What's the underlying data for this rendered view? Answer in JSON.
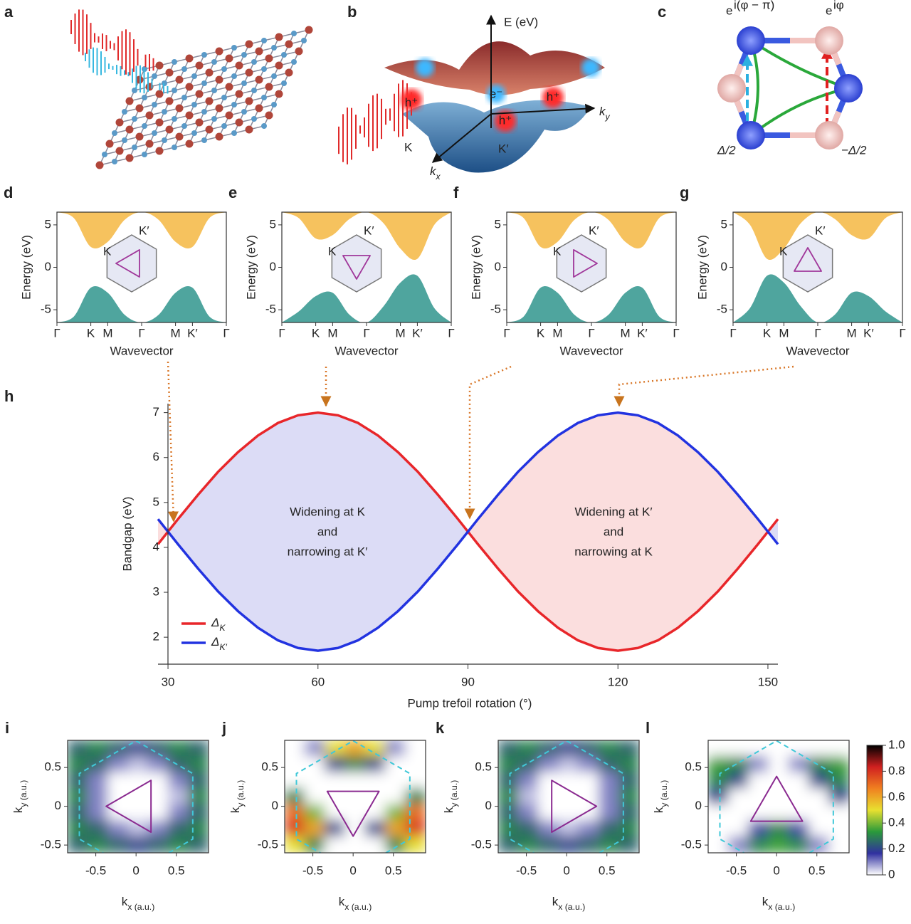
{
  "figure": {
    "a": {
      "panel_label": "a"
    },
    "b": {
      "panel_label": "b",
      "energy_axis": "E (eV)",
      "ky_axis": "ky",
      "kx_axis": "kx",
      "electron": "e⁻",
      "holes": [
        "h⁺",
        "h⁺",
        "h⁺"
      ],
      "valley_k": "K",
      "valley_k_prime": "K′"
    },
    "c": {
      "panel_label": "c",
      "phase_blue": {
        "base": "e",
        "exponent": "i(φ − π)"
      },
      "phase_red": {
        "base": "e",
        "exponent": "iφ"
      },
      "onsite_blue": "Δ/2",
      "onsite_red": "−Δ/2"
    }
  },
  "chart_data": [
    {
      "type": "band",
      "panel_label": "d",
      "x": [
        0,
        0.1,
        0.2,
        0.3,
        0.4,
        0.5,
        0.6,
        0.7,
        0.8,
        0.9,
        1
      ],
      "xlim": [
        0,
        1
      ],
      "xticks": [
        {
          "value": 0,
          "label": "Γ"
        },
        {
          "value": 0.2,
          "label": "K"
        },
        {
          "value": 0.3,
          "label": "M"
        },
        {
          "value": 0.5,
          "label": "Γ"
        },
        {
          "value": 0.7,
          "label": "M"
        },
        {
          "value": 0.8,
          "label": "K′"
        },
        {
          "value": 1,
          "label": "Γ"
        }
      ],
      "ylim": [
        -6.5,
        6.5
      ],
      "yticks": [
        -5,
        0,
        5
      ],
      "xlabel": "Wavevector",
      "ylabel": "Energy (eV)",
      "inset_labels": [
        "K",
        "K′"
      ],
      "series": [
        {
          "color": "#f6c25e",
          "fill": "top",
          "values": [
            6.5,
            5.8,
            2.4,
            3.0,
            5.6,
            6.5,
            5.6,
            3.0,
            2.4,
            5.8,
            6.5
          ]
        },
        {
          "color": "#4fa59e",
          "fill": "bottom",
          "values": [
            -6.5,
            -5.8,
            -2.4,
            -3.0,
            -5.6,
            -6.5,
            -5.6,
            -3.0,
            -2.4,
            -5.8,
            -6.5
          ]
        }
      ]
    },
    {
      "type": "band",
      "panel_label": "e",
      "x": [
        0,
        0.1,
        0.2,
        0.3,
        0.4,
        0.5,
        0.6,
        0.7,
        0.8,
        0.9,
        1
      ],
      "xlim": [
        0,
        1
      ],
      "xticks": [
        {
          "value": 0,
          "label": "Γ"
        },
        {
          "value": 0.2,
          "label": "K"
        },
        {
          "value": 0.3,
          "label": "M"
        },
        {
          "value": 0.5,
          "label": "Γ"
        },
        {
          "value": 0.7,
          "label": "M"
        },
        {
          "value": 0.8,
          "label": "K′"
        },
        {
          "value": 1,
          "label": "Γ"
        }
      ],
      "ylim": [
        -6.5,
        6.5
      ],
      "yticks": [
        -5,
        0,
        5
      ],
      "xlabel": "Wavevector",
      "ylabel": "Energy (eV)",
      "inset_labels": [
        "K",
        "K′"
      ],
      "series": [
        {
          "color": "#f6c25e",
          "fill": "top",
          "values": [
            6.5,
            5.8,
            3.4,
            3.8,
            5.7,
            6.5,
            5.2,
            2.2,
            1.0,
            5.0,
            6.5
          ]
        },
        {
          "color": "#4fa59e",
          "fill": "bottom",
          "values": [
            -6.5,
            -5.2,
            -3.4,
            -3.0,
            -5.6,
            -6.5,
            -4.6,
            -1.8,
            -1.0,
            -4.8,
            -6.5
          ]
        }
      ]
    },
    {
      "type": "band",
      "panel_label": "f",
      "x": [
        0,
        0.1,
        0.2,
        0.3,
        0.4,
        0.5,
        0.6,
        0.7,
        0.8,
        0.9,
        1
      ],
      "xlim": [
        0,
        1
      ],
      "xticks": [
        {
          "value": 0,
          "label": "Γ"
        },
        {
          "value": 0.2,
          "label": "K"
        },
        {
          "value": 0.3,
          "label": "M"
        },
        {
          "value": 0.5,
          "label": "Γ"
        },
        {
          "value": 0.7,
          "label": "M"
        },
        {
          "value": 0.8,
          "label": "K′"
        },
        {
          "value": 1,
          "label": "Γ"
        }
      ],
      "ylim": [
        -6.5,
        6.5
      ],
      "yticks": [
        -5,
        0,
        5
      ],
      "xlabel": "Wavevector",
      "ylabel": "Energy (eV)",
      "inset_labels": [
        "K",
        "K′"
      ],
      "series": [
        {
          "color": "#f6c25e",
          "fill": "top",
          "values": [
            6.5,
            5.8,
            2.4,
            3.0,
            5.6,
            6.5,
            5.6,
            3.0,
            2.4,
            5.8,
            6.5
          ]
        },
        {
          "color": "#4fa59e",
          "fill": "bottom",
          "values": [
            -6.5,
            -5.8,
            -2.4,
            -3.0,
            -5.6,
            -6.5,
            -5.6,
            -3.0,
            -2.4,
            -5.8,
            -6.5
          ]
        }
      ]
    },
    {
      "type": "band",
      "panel_label": "g",
      "x": [
        0,
        0.1,
        0.2,
        0.3,
        0.4,
        0.5,
        0.6,
        0.7,
        0.8,
        0.9,
        1
      ],
      "xlim": [
        0,
        1
      ],
      "xticks": [
        {
          "value": 0,
          "label": "Γ"
        },
        {
          "value": 0.2,
          "label": "K"
        },
        {
          "value": 0.3,
          "label": "M"
        },
        {
          "value": 0.5,
          "label": "Γ"
        },
        {
          "value": 0.7,
          "label": "M"
        },
        {
          "value": 0.8,
          "label": "K′"
        },
        {
          "value": 1,
          "label": "Γ"
        }
      ],
      "ylim": [
        -6.5,
        6.5
      ],
      "yticks": [
        -5,
        0,
        5
      ],
      "xlabel": "Wavevector",
      "ylabel": "Energy (eV)",
      "inset_labels": [
        "K",
        "K′"
      ],
      "series": [
        {
          "color": "#f6c25e",
          "fill": "top",
          "values": [
            6.5,
            5.0,
            1.0,
            2.2,
            5.2,
            6.5,
            5.7,
            3.8,
            3.4,
            5.8,
            6.5
          ]
        },
        {
          "color": "#4fa59e",
          "fill": "bottom",
          "values": [
            -6.5,
            -4.8,
            -1.0,
            -1.8,
            -4.6,
            -6.5,
            -5.6,
            -3.0,
            -3.4,
            -5.2,
            -6.5
          ]
        }
      ]
    },
    {
      "type": "line",
      "panel_label": "h",
      "x": [
        28,
        32,
        36,
        40,
        44,
        48,
        52,
        56,
        60,
        64,
        68,
        72,
        76,
        80,
        84,
        88,
        92,
        96,
        100,
        104,
        108,
        112,
        116,
        120,
        124,
        128,
        132,
        136,
        140,
        144,
        148,
        152
      ],
      "xlim": [
        28,
        152
      ],
      "xticks": [
        30,
        60,
        90,
        120,
        150
      ],
      "ylim": [
        1.4,
        7.2
      ],
      "yticks": [
        2,
        3,
        4,
        5,
        6,
        7
      ],
      "xlabel": "Pump trefoil rotation (°)",
      "ylabel": "Bandgap (eV)",
      "legend": "lower left",
      "series": [
        {
          "name": "ΔK",
          "color": "#e8262a",
          "values": [
            4.07,
            4.63,
            5.17,
            5.68,
            6.12,
            6.49,
            6.77,
            6.94,
            7.0,
            6.94,
            6.77,
            6.49,
            6.12,
            5.68,
            5.17,
            4.63,
            4.07,
            3.53,
            3.02,
            2.58,
            2.21,
            1.93,
            1.76,
            1.7,
            1.76,
            1.93,
            2.21,
            2.58,
            3.02,
            3.53,
            4.07,
            4.63
          ]
        },
        {
          "name": "ΔK′",
          "color": "#2233e0",
          "values": [
            4.63,
            4.07,
            3.53,
            3.02,
            2.58,
            2.21,
            1.93,
            1.76,
            1.7,
            1.76,
            1.93,
            2.21,
            2.58,
            3.02,
            3.53,
            4.07,
            4.63,
            5.17,
            5.68,
            6.12,
            6.49,
            6.77,
            6.94,
            7.0,
            6.94,
            6.77,
            6.49,
            6.12,
            5.68,
            5.17,
            4.63,
            4.07
          ]
        }
      ],
      "fill_colors": [
        "#dcdcf6",
        "#fbdede"
      ],
      "annotations": [
        [
          "Widening at K",
          "and",
          "narrowing at K′"
        ],
        [
          "Widening at K′",
          "and",
          "narrowing at K"
        ]
      ]
    },
    {
      "type": "heatmap",
      "panel_label": "i",
      "xlim": [
        -0.85,
        0.9
      ],
      "ylim": [
        -0.6,
        0.85
      ],
      "xticks": [
        -0.5,
        0,
        0.5
      ],
      "yticks": [
        -0.5,
        0,
        0.5
      ],
      "xlabel": "kx (a.u.)",
      "ylabel": "ky (a.u.)",
      "z": [
        [
          0.25,
          0.3,
          0.25,
          0.2,
          0.25,
          0.3,
          0.25
        ],
        [
          0.3,
          0.25,
          0.1,
          0.05,
          0.1,
          0.25,
          0.3
        ],
        [
          0.25,
          0.1,
          0,
          0,
          0,
          0.1,
          0.25
        ],
        [
          0.3,
          0.1,
          0,
          0,
          0,
          0.05,
          0.3
        ],
        [
          0.25,
          0.1,
          0,
          0,
          0,
          0.1,
          0.25
        ],
        [
          0.3,
          0.25,
          0.1,
          0.05,
          0.1,
          0.25,
          0.3
        ],
        [
          0.25,
          0.3,
          0.25,
          0.2,
          0.25,
          0.3,
          0.25
        ]
      ]
    },
    {
      "type": "heatmap",
      "panel_label": "j",
      "xlim": [
        -0.85,
        0.9
      ],
      "ylim": [
        -0.6,
        0.85
      ],
      "xticks": [
        -0.5,
        0,
        0.5
      ],
      "yticks": [
        -0.5,
        0,
        0.5
      ],
      "xlabel": "kx (a.u.)",
      "ylabel": "ky (a.u.)",
      "z": [
        [
          0,
          0.1,
          0.5,
          0.6,
          0.5,
          0.1,
          0
        ],
        [
          0,
          0,
          0.2,
          0.3,
          0.2,
          0,
          0
        ],
        [
          0,
          0,
          0,
          0,
          0,
          0,
          0
        ],
        [
          0.3,
          0,
          0,
          0,
          0,
          0,
          0.3
        ],
        [
          0.7,
          0.4,
          0,
          0,
          0,
          0.4,
          0.7
        ],
        [
          0.8,
          0.6,
          0.2,
          0,
          0.2,
          0.6,
          0.8
        ],
        [
          0.5,
          0.3,
          0,
          0,
          0,
          0.3,
          0.5
        ]
      ]
    },
    {
      "type": "heatmap",
      "panel_label": "k",
      "xlim": [
        -0.85,
        0.9
      ],
      "ylim": [
        -0.6,
        0.85
      ],
      "xticks": [
        -0.5,
        0,
        0.5
      ],
      "yticks": [
        -0.5,
        0,
        0.5
      ],
      "xlabel": "kx (a.u.)",
      "ylabel": "ky (a.u.)",
      "z": [
        [
          0.25,
          0.3,
          0.25,
          0.2,
          0.25,
          0.3,
          0.25
        ],
        [
          0.3,
          0.25,
          0.1,
          0.05,
          0.1,
          0.25,
          0.3
        ],
        [
          0.25,
          0.1,
          0,
          0,
          0,
          0.1,
          0.25
        ],
        [
          0.3,
          0.05,
          0,
          0,
          0,
          0.1,
          0.3
        ],
        [
          0.25,
          0.1,
          0,
          0,
          0,
          0.1,
          0.25
        ],
        [
          0.3,
          0.25,
          0.1,
          0.05,
          0.1,
          0.25,
          0.3
        ],
        [
          0.25,
          0.3,
          0.25,
          0.2,
          0.25,
          0.3,
          0.25
        ]
      ]
    },
    {
      "type": "heatmap",
      "panel_label": "l",
      "xlim": [
        -0.85,
        0.9
      ],
      "ylim": [
        -0.6,
        0.85
      ],
      "xticks": [
        -0.5,
        0,
        0.5
      ],
      "yticks": [
        -0.5,
        0,
        0.5
      ],
      "xlabel": "kx (a.u.)",
      "ylabel": "ky (a.u.)",
      "z": [
        [
          0,
          0,
          0,
          0,
          0,
          0,
          0
        ],
        [
          0.35,
          0.3,
          0.1,
          0,
          0.1,
          0.3,
          0.35
        ],
        [
          0.3,
          0.2,
          0,
          0,
          0,
          0.2,
          0.3
        ],
        [
          0.2,
          0,
          0,
          0,
          0,
          0,
          0.2
        ],
        [
          0,
          0,
          0,
          0,
          0,
          0,
          0
        ],
        [
          0,
          0,
          0.15,
          0.3,
          0.15,
          0,
          0
        ],
        [
          0,
          0.1,
          0.3,
          0.35,
          0.3,
          0.1,
          0
        ]
      ],
      "colorbar": {
        "zlim": [
          0,
          1
        ],
        "ticks": [
          0,
          0.2,
          0.4,
          0.6,
          0.8,
          {
            "value": 1,
            "label": "1.0"
          }
        ],
        "colormap": [
          "#ffffff",
          "#3030a0",
          "#2a9a3a",
          "#e8e030",
          "#f08020",
          "#d02020",
          "#000000"
        ]
      }
    }
  ]
}
